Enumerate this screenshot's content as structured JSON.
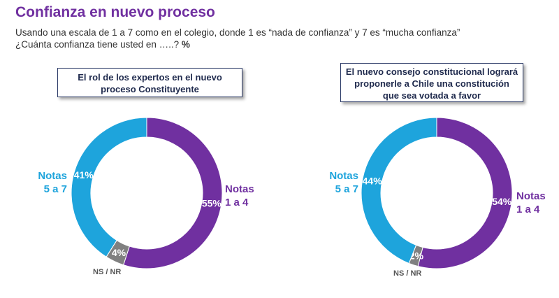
{
  "title": "Confianza en nuevo proceso",
  "subtitle": {
    "line1": "Usando una escala de 1 a 7 como en el colegio, donde 1 es “nada de confianza” y 7 es “mucha confianza”",
    "line2": "¿Cuánta confianza tiene usted en …..?",
    "pct": "%"
  },
  "colors": {
    "purple": "#7030a0",
    "blue": "#1ea4dc",
    "gray": "#808080"
  },
  "chart_data": [
    {
      "type": "pie",
      "donut": true,
      "title": "El rol de los expertos en el nuevo proceso Constituyente",
      "slices": [
        {
          "name": "Notas 1 a 4",
          "value": 55,
          "label": "55%"
        },
        {
          "name": "NS / NR",
          "value": 4,
          "label": "4%"
        },
        {
          "name": "Notas 5 a 7",
          "value": 41,
          "label": "41%"
        }
      ]
    },
    {
      "type": "pie",
      "donut": true,
      "title": "El nuevo consejo constitucional logrará proponerle a Chile una constitución que sea votada a favor",
      "slices": [
        {
          "name": "Notas 1 a 4",
          "value": 54,
          "label": "54%"
        },
        {
          "name": "NS / NR",
          "value": 2,
          "label": "2%"
        },
        {
          "name": "Notas 5 a 7",
          "value": 44,
          "label": "44%"
        }
      ]
    }
  ],
  "labels": {
    "notas_14_l1": "Notas",
    "notas_14_l2": "1 a 4",
    "notas_57_l1": "Notas",
    "notas_57_l2": "5 a 7",
    "nsnr": "NS / NR"
  }
}
